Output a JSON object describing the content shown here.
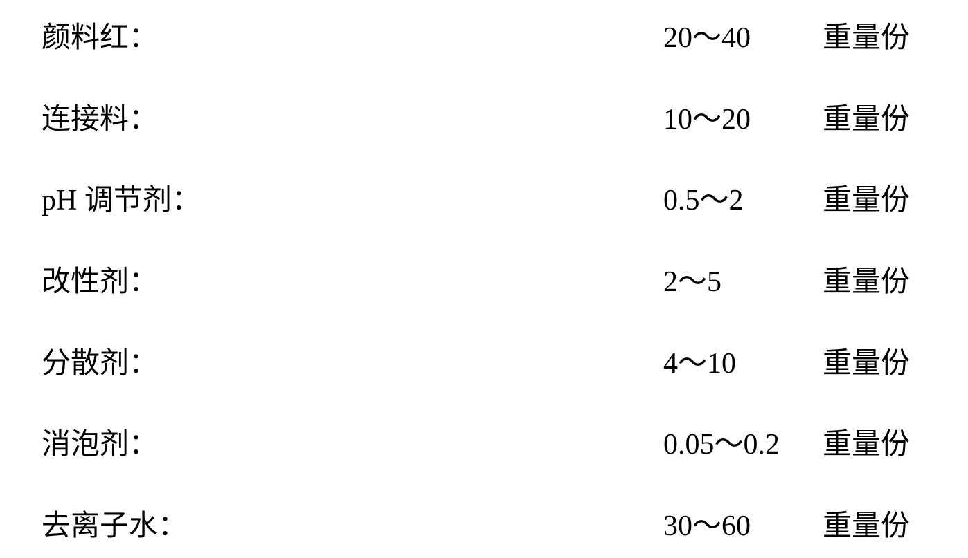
{
  "rows": [
    {
      "label": "颜料红：",
      "value": "20～40",
      "unit": "重量份"
    },
    {
      "label": "连接料：",
      "value": "10～20",
      "unit": "重量份"
    },
    {
      "label": "pH 调节剂：",
      "value": "0.5～2",
      "unit": "重量份"
    },
    {
      "label": "改性剂：",
      "value": "2～5",
      "unit": "重量份"
    },
    {
      "label": "分散剂：",
      "value": "4～10",
      "unit": "重量份"
    },
    {
      "label": "消泡剂：",
      "value": "0.05～0.2",
      "unit": "重量份"
    },
    {
      "label": "去离子水：",
      "value": "30～60",
      "unit": "重量份"
    }
  ],
  "styling": {
    "background_color": "#ffffff",
    "text_color": "#000000",
    "font_size": 42,
    "font_family_cjk": "SimSun",
    "font_family_numeric": "Times New Roman",
    "row_count": 7
  }
}
